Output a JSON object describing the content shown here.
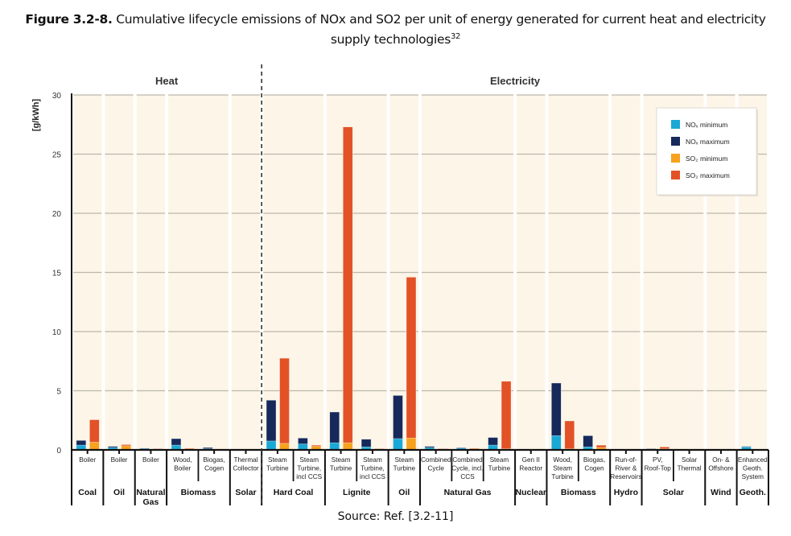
{
  "figure": {
    "label": "Figure 3.2-8.",
    "caption_line1": " Cumulative lifecycle emissions of NOx and SO2 per unit of energy generated for current heat and electricity",
    "caption_line2": "supply technologies",
    "footnote_ref": "32",
    "source": "Source: Ref. [3.2-11]"
  },
  "chart_data": {
    "type": "bar",
    "title": "Cumulative lifecycle emissions of NOx and SO2 per unit of energy generated",
    "ylabel": "[g/kWh]",
    "xlabel": "",
    "ylim": [
      0,
      30
    ],
    "yticks": [
      0,
      5,
      10,
      15,
      20,
      25,
      30
    ],
    "grid": true,
    "legend_position": "top-right",
    "sections": [
      {
        "name": "Heat",
        "group_start": 0,
        "group_end": 4
      },
      {
        "name": "Electricity",
        "group_start": 5,
        "group_end": 14
      }
    ],
    "legend": [
      {
        "key": "nox_min",
        "label": "NOx minimum",
        "color": "#1aa9d6"
      },
      {
        "key": "nox_max",
        "label": "NOx maximum",
        "color": "#16295a"
      },
      {
        "key": "so2_min",
        "label": "SO2 minimum",
        "color": "#f6a21e"
      },
      {
        "key": "so2_max",
        "label": "SO2 maximum",
        "color": "#e25226"
      }
    ],
    "groups": [
      {
        "name": "Coal",
        "section": "Heat",
        "techs": [
          {
            "label": "Boiler",
            "nox_min": 0.4,
            "nox_max": 0.8,
            "so2_min": 0.65,
            "so2_max": 2.55
          }
        ]
      },
      {
        "name": "Oil",
        "section": "Heat",
        "techs": [
          {
            "label": "Boiler",
            "nox_min": 0.2,
            "nox_max": 0.3,
            "so2_min": 0.35,
            "so2_max": 0.45
          }
        ]
      },
      {
        "name": "Natural Gas",
        "section": "Heat",
        "techs": [
          {
            "label": "Boiler",
            "nox_min": 0.1,
            "nox_max": 0.15,
            "so2_min": 0.05,
            "so2_max": 0.1
          }
        ]
      },
      {
        "name": "Biomass",
        "section": "Heat",
        "techs": [
          {
            "label": "Wood, Boiler",
            "nox_min": 0.4,
            "nox_max": 0.95,
            "so2_min": 0.1,
            "so2_max": 0.15
          },
          {
            "label": "Biogas, Cogen",
            "nox_min": 0.1,
            "nox_max": 0.2,
            "so2_min": 0.03,
            "so2_max": 0.05
          }
        ]
      },
      {
        "name": "Solar",
        "section": "Heat",
        "techs": [
          {
            "label": "Thermal Collector",
            "nox_min": 0.02,
            "nox_max": 0.03,
            "so2_min": 0.03,
            "so2_max": 0.05
          }
        ]
      },
      {
        "name": "Hard Coal",
        "section": "Electricity",
        "techs": [
          {
            "label": "Steam Turbine",
            "nox_min": 0.75,
            "nox_max": 4.2,
            "so2_min": 0.55,
            "so2_max": 7.75
          },
          {
            "label": "Steam Turbine, incl CCS",
            "nox_min": 0.5,
            "nox_max": 1.0,
            "so2_min": 0.3,
            "so2_max": 0.4
          }
        ]
      },
      {
        "name": "Lignite",
        "section": "Electricity",
        "techs": [
          {
            "label": "Steam Turbine",
            "nox_min": 0.6,
            "nox_max": 3.2,
            "so2_min": 0.6,
            "so2_max": 27.3
          },
          {
            "label": "Steam Turbine, incl CCS",
            "nox_min": 0.25,
            "nox_max": 0.9,
            "so2_min": 0.05,
            "so2_max": 0.1
          }
        ]
      },
      {
        "name": "Oil",
        "section": "Electricity",
        "techs": [
          {
            "label": "Steam Turbine",
            "nox_min": 0.95,
            "nox_max": 4.6,
            "so2_min": 1.0,
            "so2_max": 14.6
          }
        ]
      },
      {
        "name": "Natural Gas",
        "section": "Electricity",
        "techs": [
          {
            "label": "Combined Cycle",
            "nox_min": 0.2,
            "nox_max": 0.3,
            "so2_min": 0.05,
            "so2_max": 0.1
          },
          {
            "label": "Combined Cycle, incl. CCS",
            "nox_min": 0.15,
            "nox_max": 0.2,
            "so2_min": 0.1,
            "so2_max": 0.15
          },
          {
            "label": "Steam Turbine",
            "nox_min": 0.4,
            "nox_max": 1.05,
            "so2_min": 0.1,
            "so2_max": 5.8
          }
        ]
      },
      {
        "name": "Nuclear",
        "section": "Electricity",
        "techs": [
          {
            "label": "Gen II Reactor",
            "nox_min": 0.02,
            "nox_max": 0.03,
            "so2_min": 0.02,
            "so2_max": 0.03
          }
        ]
      },
      {
        "name": "Biomass",
        "section": "Electricity",
        "techs": [
          {
            "label": "Wood, Steam Turbine",
            "nox_min": 1.2,
            "nox_max": 5.65,
            "so2_min": 0.1,
            "so2_max": 2.45
          },
          {
            "label": "Biogas, Cogen",
            "nox_min": 0.25,
            "nox_max": 1.2,
            "so2_min": 0.2,
            "so2_max": 0.4
          }
        ]
      },
      {
        "name": "Hydro",
        "section": "Electricity",
        "techs": [
          {
            "label": "Run-of-River & Reservoirs",
            "nox_min": 0.01,
            "nox_max": 0.01,
            "so2_min": 0.01,
            "so2_max": 0.01
          }
        ]
      },
      {
        "name": "Solar",
        "section": "Electricity",
        "techs": [
          {
            "label": "PV, Roof-Top",
            "nox_min": 0.05,
            "nox_max": 0.1,
            "so2_min": 0.1,
            "so2_max": 0.25
          },
          {
            "label": "Solar Thermal",
            "nox_min": 0.03,
            "nox_max": 0.05,
            "so2_min": 0.03,
            "so2_max": 0.05
          }
        ]
      },
      {
        "name": "Wind",
        "section": "Electricity",
        "techs": [
          {
            "label": "On- & Offshore",
            "nox_min": 0.03,
            "nox_max": 0.05,
            "so2_min": 0.02,
            "so2_max": 0.03
          }
        ]
      },
      {
        "name": "Geoth.",
        "section": "Electricity",
        "techs": [
          {
            "label": "Enhanced Geoth. System",
            "nox_min": 0.25,
            "nox_max": 0.3,
            "so2_min": 0.02,
            "so2_max": 0.03
          }
        ]
      }
    ]
  }
}
